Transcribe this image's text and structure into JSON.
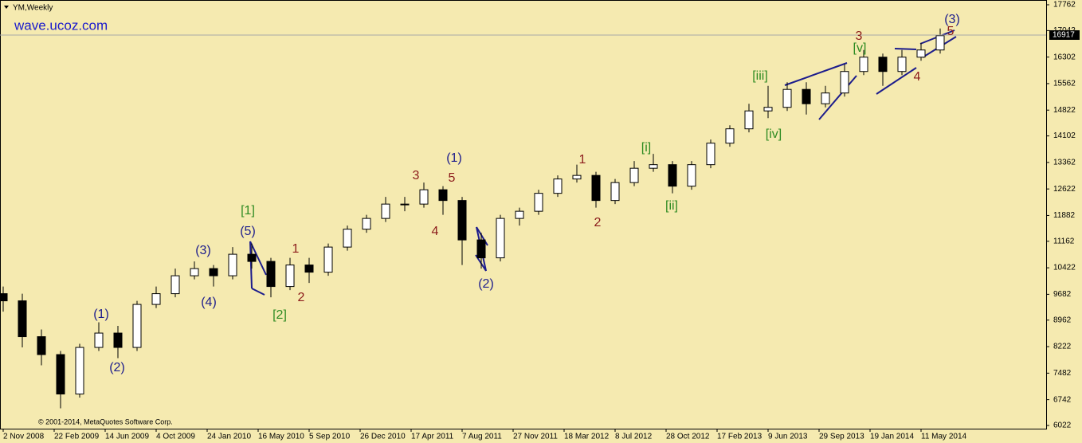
{
  "chart_data": {
    "type": "candlestick",
    "title": "YM,Weekly",
    "watermark": "wave.ucoz.com",
    "copyright": "© 2001-2014, MetaQuotes Software Corp.",
    "x": [
      0,
      6,
      12,
      18,
      24,
      30,
      36,
      42,
      48,
      54,
      60,
      66,
      72,
      78,
      84,
      90,
      96,
      102,
      108,
      114,
      120,
      126,
      132,
      138,
      144,
      150,
      156,
      162,
      168,
      174,
      180,
      186,
      192,
      198,
      204,
      210,
      216,
      222,
      228,
      234,
      240,
      246,
      252,
      258,
      264,
      270,
      276,
      282,
      288,
      294
    ],
    "open": [
      9700,
      9500,
      8500,
      8000,
      6900,
      8200,
      8600,
      8200,
      9400,
      9700,
      10200,
      10400,
      10200,
      10800,
      10600,
      9900,
      10500,
      10300,
      11000,
      11500,
      11800,
      12200,
      12200,
      12600,
      12300,
      11200,
      10700,
      11800,
      12000,
      12500,
      12900,
      13000,
      12300,
      12800,
      13200,
      13300,
      12700,
      13300,
      13900,
      14300,
      14800,
      14900,
      15400,
      15000,
      15300,
      15900,
      16300,
      15900,
      16300,
      16500
    ],
    "high": [
      9900,
      9700,
      8700,
      8100,
      8300,
      8900,
      8800,
      9500,
      9900,
      10400,
      10600,
      10500,
      11000,
      11100,
      10700,
      10700,
      10700,
      11100,
      11600,
      11900,
      12400,
      12400,
      12800,
      12700,
      12400,
      11400,
      11900,
      12100,
      12600,
      13000,
      13300,
      13100,
      12900,
      13400,
      13600,
      13400,
      13400,
      14000,
      14400,
      15000,
      15500,
      15600,
      15600,
      15500,
      16100,
      16500,
      16400,
      16500,
      16700,
      17100
    ],
    "low": [
      9200,
      8200,
      7700,
      6500,
      6800,
      8100,
      7900,
      8100,
      9300,
      9600,
      10100,
      9900,
      10100,
      10400,
      9600,
      9800,
      10000,
      10200,
      10900,
      11400,
      11700,
      12000,
      12100,
      11900,
      10500,
      10400,
      10600,
      11600,
      11900,
      12400,
      12800,
      12100,
      12200,
      12700,
      13100,
      12500,
      12600,
      13200,
      13800,
      14200,
      14600,
      14800,
      14700,
      14900,
      15200,
      15800,
      15500,
      15800,
      16200,
      16400
    ],
    "close": [
      9500,
      8500,
      8000,
      6900,
      8200,
      8600,
      8200,
      9400,
      9700,
      10200,
      10400,
      10200,
      10800,
      10600,
      9900,
      10500,
      10300,
      11000,
      11500,
      11800,
      12200,
      12200,
      12600,
      12300,
      11200,
      10700,
      11800,
      12000,
      12500,
      12900,
      13000,
      12300,
      12800,
      13200,
      13300,
      12700,
      13300,
      13900,
      14300,
      14800,
      14900,
      15400,
      15000,
      15300,
      15900,
      16300,
      15900,
      16300,
      16500,
      16900
    ],
    "xlim": [
      -1,
      327.25
    ],
    "xticks": [
      {
        "value": 0,
        "label": "2 Nov 2008"
      },
      {
        "value": 16,
        "label": "22 Feb 2009"
      },
      {
        "value": 32,
        "label": "14 Jun 2009"
      },
      {
        "value": 48,
        "label": "4 Oct 2009"
      },
      {
        "value": 64,
        "label": "24 Jan 2010"
      },
      {
        "value": 80,
        "label": "16 May 2010"
      },
      {
        "value": 96,
        "label": "5 Sep 2010"
      },
      {
        "value": 112,
        "label": "26 Dec 2010"
      },
      {
        "value": 128,
        "label": "17 Apr 2011"
      },
      {
        "value": 144,
        "label": "7 Aug 2011"
      },
      {
        "value": 160,
        "label": "27 Nov 2011"
      },
      {
        "value": 176,
        "label": "18 Mar 2012"
      },
      {
        "value": 192,
        "label": "8 Jul 2012"
      },
      {
        "value": 208,
        "label": "28 Oct 2012"
      },
      {
        "value": 224,
        "label": "17 Feb 2013"
      },
      {
        "value": 240,
        "label": "9 Jun 2013"
      },
      {
        "value": 256,
        "label": "29 Sep 2013"
      },
      {
        "value": 272,
        "label": "19 Jan 2014"
      },
      {
        "value": 288,
        "label": "11 May 2014"
      }
    ],
    "ylim": [
      5933,
      17895
    ],
    "yticks": [
      17762,
      17042,
      16302,
      15562,
      14822,
      14102,
      13362,
      12622,
      11882,
      11162,
      10422,
      9682,
      8962,
      8222,
      7482,
      6742,
      6022
    ],
    "current_price": 16917,
    "annotations": [
      {
        "text": "(1)",
        "color": "#1c1c8c"
      },
      {
        "text": "(2)",
        "color": "#1c1c8c"
      },
      {
        "text": "(3)",
        "color": "#1c1c8c"
      },
      {
        "text": "(4)",
        "color": "#1c1c8c"
      },
      {
        "text": "(5)",
        "color": "#1c1c8c"
      },
      {
        "text": "[1]",
        "color": "#2e8b22"
      },
      {
        "text": "[2]",
        "color": "#2e8b22"
      },
      {
        "text": "1",
        "color": "#8b1a1a"
      },
      {
        "text": "2",
        "color": "#8b1a1a"
      },
      {
        "text": "3",
        "color": "#8b1a1a"
      },
      {
        "text": "4",
        "color": "#8b1a1a"
      },
      {
        "text": "5",
        "color": "#8b1a1a"
      },
      {
        "text": "(1)",
        "color": "#1c1c8c"
      },
      {
        "text": "(2)",
        "color": "#1c1c8c"
      },
      {
        "text": "1",
        "color": "#8b1a1a"
      },
      {
        "text": "2",
        "color": "#8b1a1a"
      },
      {
        "text": "[i]",
        "color": "#2e8b22"
      },
      {
        "text": "[ii]",
        "color": "#2e8b22"
      },
      {
        "text": "[iii]",
        "color": "#2e8b22"
      },
      {
        "text": "[iv]",
        "color": "#2e8b22"
      },
      {
        "text": "3",
        "color": "#8b1a1a"
      },
      {
        "text": "[v]",
        "color": "#2e8b22"
      },
      {
        "text": "4",
        "color": "#8b1a1a"
      },
      {
        "text": "(3)",
        "color": "#1c1c8c"
      },
      {
        "text": "5",
        "color": "#8b1a1a"
      }
    ]
  }
}
